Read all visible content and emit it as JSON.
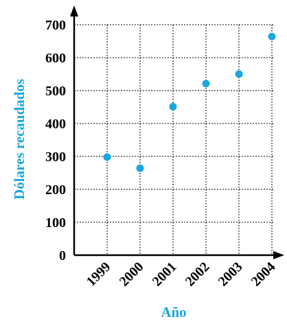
{
  "chart_data": {
    "type": "scatter",
    "title": "",
    "xlabel": "Año",
    "ylabel": "Dólares recaudados",
    "categories": [
      "1999",
      "2000",
      "2001",
      "2002",
      "2003",
      "2004"
    ],
    "series": [
      {
        "values": [
          298,
          264,
          451,
          521,
          550,
          664
        ]
      }
    ],
    "yticks": [
      0,
      100,
      200,
      300,
      400,
      500,
      600,
      700
    ],
    "ylim": [
      0,
      700
    ],
    "grid": true,
    "legend": "none",
    "colors": {
      "point": "#1aa7e0",
      "axis_title": "#1aa7e0",
      "axis": "#000000",
      "grid": "#000000"
    }
  }
}
